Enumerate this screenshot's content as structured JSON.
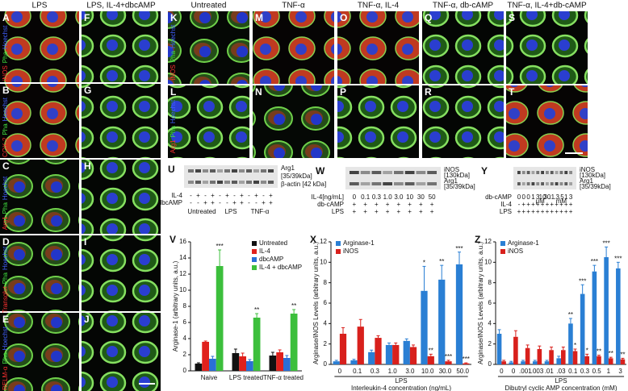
{
  "microscopy": {
    "left_headers": [
      "LPS",
      "LPS, IL-4+dbcAMP"
    ],
    "right_headers": [
      "Untreated",
      "TNF-α",
      "TNF-α, IL-4",
      "TNF-α, db-cAMP",
      "TNF-α, IL-4+db-cAMP"
    ],
    "left_letters": [
      "A",
      "B",
      "C",
      "D",
      "E",
      "F",
      "G",
      "H",
      "I",
      "J"
    ],
    "right_letters": [
      "K",
      "L",
      "M",
      "N",
      "O",
      "P",
      "Q",
      "R",
      "S",
      "T"
    ],
    "left_stains": [
      [
        "iNOS",
        "Pha",
        "Hoechst"
      ],
      [
        "COX-2",
        "Pha",
        "Hoechst"
      ],
      [
        "Arg1",
        "Pha",
        "Hoechst"
      ],
      [
        "Transglut",
        "Pha",
        "Hoechst"
      ],
      [
        "RELM-α",
        "Pha",
        "Hoechst"
      ]
    ],
    "right_stains": [
      [
        "iNOS",
        "Pha",
        "Hoechst"
      ],
      [
        "Arg1",
        "Pha",
        "Hoechst"
      ]
    ]
  },
  "blots": [
    {
      "letter": "U",
      "bands": [
        "Arg1",
        "[35/39kDa]",
        "β-actin [42 kDa]"
      ],
      "rows": [
        {
          "label": "IL-4",
          "lanes": [
            "-",
            "+",
            "-",
            "+",
            "-",
            "+",
            "-",
            "+",
            "-",
            "+",
            "-",
            "+"
          ]
        },
        {
          "label": "dbcAMP",
          "lanes": [
            "-",
            "-",
            "+",
            "+",
            "-",
            "-",
            "+",
            "+",
            "-",
            "-",
            "+",
            "+"
          ]
        }
      ],
      "groups": [
        "Untreated",
        "LPS",
        "TNF-α"
      ]
    },
    {
      "letter": "W",
      "bands": [
        "iNOS",
        "[130kDa]",
        "Arg1",
        "[35/39kDa]"
      ],
      "rows": [
        {
          "label": "IL-4[ng/mL]",
          "lanes": [
            "0",
            "0.1",
            "0.3",
            "1.0",
            "3.0",
            "10",
            "30",
            "50"
          ]
        },
        {
          "label": "db-cAMP",
          "lanes": [
            "+",
            "+",
            "+",
            "+",
            "+",
            "+",
            "+",
            "+"
          ]
        },
        {
          "label": "LPS",
          "lanes": [
            "+",
            "+",
            "+",
            "+",
            "+",
            "+",
            "+",
            "+"
          ]
        }
      ]
    },
    {
      "letter": "Y",
      "bands": [
        "iNOS",
        "[130kDa]",
        "Arg1",
        "[35/39kDa]"
      ],
      "rows": [
        {
          "label": "db-cAMP",
          "lanes": [
            "0",
            "0",
            "0",
            "1",
            "3",
            "10",
            "30",
            ".1",
            ".3",
            ".5",
            "1",
            "3"
          ]
        },
        {
          "label": "IL-4",
          "lanes": [
            "-",
            "+",
            "+",
            "+",
            "+",
            "+",
            "+",
            "+",
            "+",
            "+",
            "+",
            "+"
          ]
        },
        {
          "label": "LPS",
          "lanes": [
            "+",
            "+",
            "+",
            "+",
            "+",
            "+",
            "+",
            "+",
            "+",
            "+",
            "+",
            "+"
          ]
        }
      ],
      "units": [
        "μM",
        "mM"
      ]
    }
  ],
  "chart_data": [
    {
      "type": "bar",
      "letter": "V",
      "ylabel": "Arginase-1 (arbitrary units, a.u.)",
      "categories": [
        "Naive",
        "LPS treated",
        "TNF-α treated"
      ],
      "series": [
        {
          "name": "Untreated",
          "color": "#111111",
          "values": [
            0.9,
            2.2,
            1.9
          ],
          "errors": [
            0.1,
            0.5,
            0.4
          ],
          "annotations": [
            null,
            null,
            null
          ]
        },
        {
          "name": "IL-4",
          "color": "#e0201c",
          "values": [
            3.6,
            1.8,
            2.3
          ],
          "errors": [
            0.1,
            0.4,
            0.3
          ],
          "annotations": [
            null,
            null,
            null
          ]
        },
        {
          "name": "dbcAMP",
          "color": "#2a6fd6",
          "values": [
            1.5,
            1.2,
            1.6
          ],
          "errors": [
            0.3,
            0.2,
            0.3
          ],
          "annotations": [
            null,
            null,
            null
          ]
        },
        {
          "name": "IL-4 + dbcAMP",
          "color": "#3cbf3c",
          "values": [
            13,
            6.6,
            7.1
          ],
          "errors": [
            2,
            0.5,
            0.5
          ],
          "annotations": [
            "***",
            "**",
            "**"
          ]
        }
      ],
      "ylim": [
        0,
        16
      ],
      "yticks": [
        0,
        2,
        4,
        6,
        8,
        10,
        12,
        14,
        16
      ],
      "legend": "upper right"
    },
    {
      "type": "bar",
      "letter": "X",
      "ylabel": "Arginase/iNOS Levels (arbitrary units, a.u.)",
      "xlabel": "Interleukin-4 concentration (ng/mL)",
      "group_label": "LPS",
      "categories": [
        "0",
        "0.1",
        "0.3",
        "1.0",
        "3.0",
        "10.0",
        "30.0",
        "50.0"
      ],
      "series": [
        {
          "name": "Arginase-1",
          "color": "#2a7fd4",
          "values": [
            0.3,
            0.4,
            1.2,
            1.9,
            2.3,
            7.2,
            8.3,
            9.8
          ],
          "errors": [
            0.1,
            0.1,
            0.2,
            0.2,
            0.2,
            2.4,
            1.4,
            1.2
          ],
          "annotations": [
            null,
            null,
            null,
            null,
            null,
            "*",
            "**",
            "***"
          ]
        },
        {
          "name": "iNOS",
          "color": "#d8201c",
          "values": [
            3.0,
            3.7,
            2.6,
            1.9,
            1.7,
            0.8,
            0.3,
            0.1
          ],
          "errors": [
            0.6,
            0.7,
            0.2,
            0.2,
            0.2,
            0.2,
            0.1,
            0.05
          ],
          "annotations": [
            null,
            null,
            null,
            null,
            null,
            "**",
            "***",
            "***"
          ]
        }
      ],
      "ylim": [
        0,
        12
      ],
      "yticks": [
        0,
        2,
        4,
        6,
        8,
        10,
        12
      ],
      "legend": "upper left"
    },
    {
      "type": "bar",
      "letter": "Z",
      "ylabel": "Arginase/iNOS Levels (arbitrary units, a.u.)",
      "xlabel": "Dibutryl cyclic AMP concentration (mM)",
      "group_label": "LPS",
      "categories": [
        "0",
        "0",
        ".001",
        ".003",
        ".01",
        ".03",
        "0.1",
        "0.3",
        "0.5",
        "1",
        "3"
      ],
      "series": [
        {
          "name": "Arginase-1",
          "color": "#2a7fd4",
          "values": [
            3.0,
            0.2,
            0.3,
            0.3,
            0.3,
            0.6,
            4.0,
            6.9,
            9.1,
            10.5,
            9.4
          ],
          "errors": [
            0.4,
            0.1,
            0.1,
            0.1,
            0.1,
            0.2,
            0.5,
            0.9,
            0.6,
            1.0,
            0.6
          ],
          "annotations": [
            null,
            null,
            null,
            null,
            null,
            null,
            "**",
            "***",
            "***",
            "***",
            "***"
          ]
        },
        {
          "name": "iNOS",
          "color": "#d8201c",
          "values": [
            0.3,
            2.7,
            1.6,
            1.5,
            1.4,
            1.4,
            1.3,
            0.8,
            0.8,
            0.6,
            0.5
          ],
          "errors": [
            0.1,
            0.6,
            0.3,
            0.3,
            0.3,
            0.3,
            0.2,
            0.2,
            0.1,
            0.1,
            0.1
          ],
          "annotations": [
            null,
            null,
            null,
            null,
            null,
            null,
            "*",
            "*",
            "**",
            "**",
            "**"
          ]
        }
      ],
      "ylim": [
        0,
        12
      ],
      "yticks": [
        0,
        2,
        4,
        6,
        8,
        10,
        12
      ],
      "legend": "upper left"
    }
  ]
}
